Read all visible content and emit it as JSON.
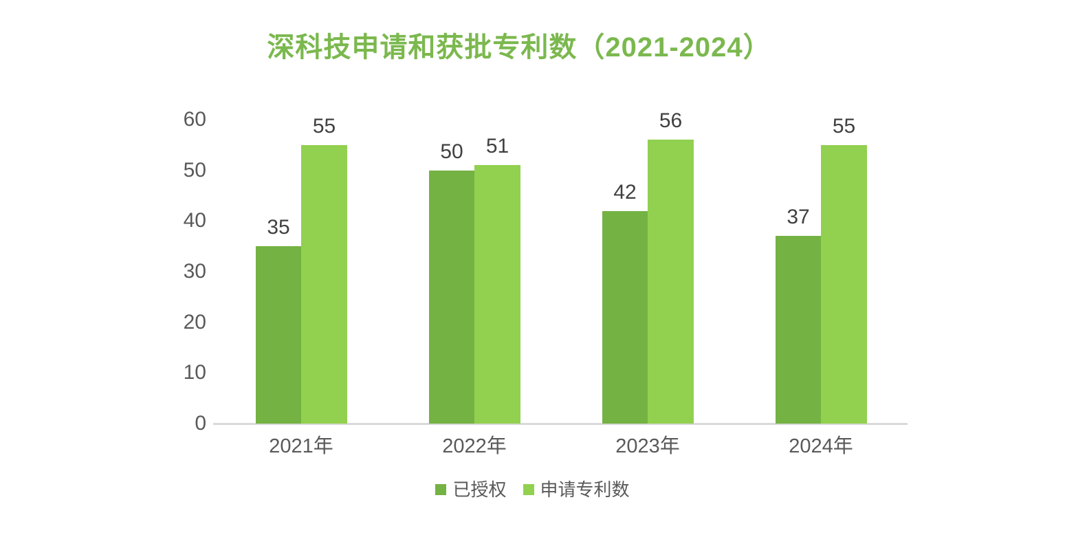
{
  "page": {
    "background": "#ffffff"
  },
  "chart_data": {
    "type": "bar",
    "title": "深科技申请和获批专利数（2021-2024）",
    "categories": [
      "2021年",
      "2022年",
      "2023年",
      "2024年"
    ],
    "series": [
      {
        "name": "已授权",
        "color": "#74b243",
        "values": [
          35,
          50,
          42,
          37
        ]
      },
      {
        "name": "申请专利数",
        "color": "#92d050",
        "values": [
          55,
          51,
          56,
          55
        ]
      }
    ],
    "xlabel": "",
    "ylabel": "",
    "ylim": [
      0,
      60
    ],
    "yticks": [
      0,
      10,
      20,
      30,
      40,
      50,
      60
    ],
    "grid": false,
    "data_labels": true,
    "legend_position": "bottom"
  },
  "colors": {
    "title": "#7bb84e",
    "axis_line": "#d9d9d9",
    "axis_tick_label": "#595959",
    "value_label": "#404040",
    "legend_label": "#595959"
  }
}
